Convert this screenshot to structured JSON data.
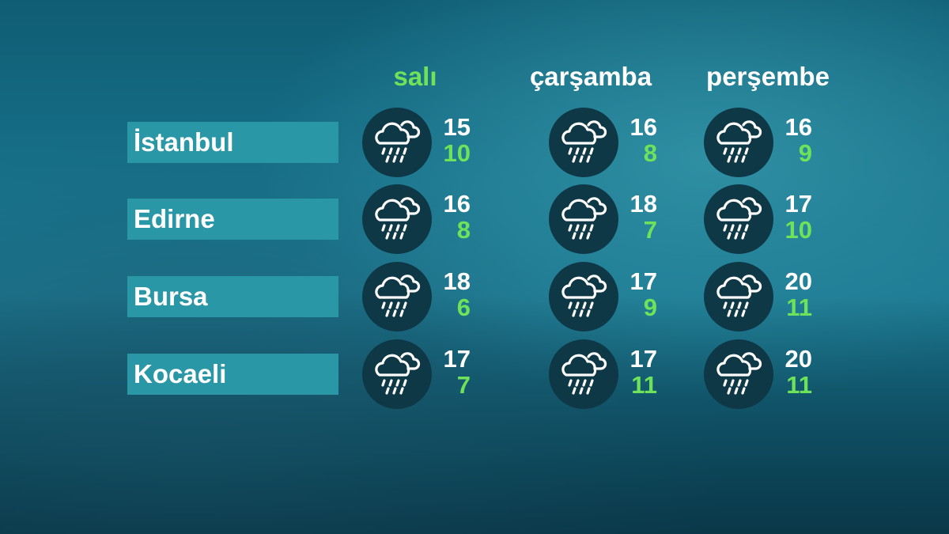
{
  "days": [
    {
      "label": "salı",
      "active": true
    },
    {
      "label": "çarşamba",
      "active": false
    },
    {
      "label": "perşembe",
      "active": false
    }
  ],
  "colors": {
    "highlight": "#6ee35a",
    "label_box": "#2a97a6",
    "icon_bg": "#0f3847"
  },
  "cities": [
    {
      "name": "İstanbul",
      "forecast": [
        {
          "icon": "rain-cloud-icon",
          "high": "15",
          "low": "10"
        },
        {
          "icon": "rain-cloud-icon",
          "high": "16",
          "low": "8"
        },
        {
          "icon": "rain-cloud-icon",
          "high": "16",
          "low": "9"
        }
      ]
    },
    {
      "name": "Edirne",
      "forecast": [
        {
          "icon": "rain-cloud-icon",
          "high": "16",
          "low": "8"
        },
        {
          "icon": "rain-cloud-icon",
          "high": "18",
          "low": "7"
        },
        {
          "icon": "rain-cloud-icon",
          "high": "17",
          "low": "10"
        }
      ]
    },
    {
      "name": "Bursa",
      "forecast": [
        {
          "icon": "rain-cloud-icon",
          "high": "18",
          "low": "6"
        },
        {
          "icon": "rain-cloud-icon",
          "high": "17",
          "low": "9"
        },
        {
          "icon": "rain-cloud-icon",
          "high": "20",
          "low": "11"
        }
      ]
    },
    {
      "name": "Kocaeli",
      "forecast": [
        {
          "icon": "rain-cloud-icon",
          "high": "17",
          "low": "7"
        },
        {
          "icon": "rain-cloud-icon",
          "high": "17",
          "low": "11"
        },
        {
          "icon": "rain-cloud-icon",
          "high": "20",
          "low": "11"
        }
      ]
    }
  ]
}
